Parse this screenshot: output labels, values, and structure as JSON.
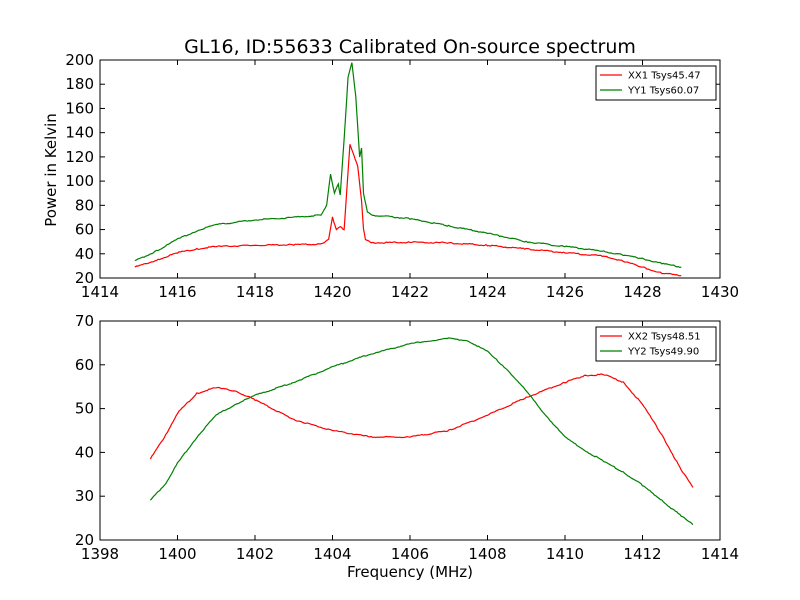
{
  "chart_data": [
    {
      "type": "line",
      "title": "GL16, ID:55633 Calibrated On-source spectrum",
      "xlabel": "",
      "ylabel": "Power in Kelvin",
      "xlim": [
        1414,
        1430
      ],
      "ylim": [
        20,
        200
      ],
      "xticks": [
        1414,
        1416,
        1418,
        1420,
        1422,
        1424,
        1426,
        1428,
        1430
      ],
      "yticks": [
        20,
        40,
        60,
        80,
        100,
        120,
        140,
        160,
        180,
        200
      ],
      "grid": false,
      "legend_position": "top-right",
      "series": [
        {
          "name": "XX1 Tsys45.47",
          "color": "#ff0000",
          "x": [
            1414.9,
            1415.5,
            1416.0,
            1416.5,
            1417.0,
            1418.0,
            1419.0,
            1419.7,
            1419.9,
            1420.0,
            1420.1,
            1420.2,
            1420.3,
            1420.45,
            1420.55,
            1420.65,
            1420.75,
            1420.8,
            1420.85,
            1421.0,
            1422.0,
            1423.0,
            1424.0,
            1425.0,
            1426.0,
            1427.0,
            1427.5,
            1428.0,
            1428.5,
            1429.0
          ],
          "y": [
            29,
            35,
            41,
            44,
            46,
            47,
            47.5,
            48,
            52,
            70,
            60,
            62,
            60,
            130,
            122,
            112,
            84,
            60,
            52,
            49,
            49.5,
            49,
            47,
            44,
            41,
            38,
            34,
            29,
            24,
            22
          ]
        },
        {
          "name": "YY1 Tsys60.07",
          "color": "#008000",
          "x": [
            1414.9,
            1415.5,
            1416.0,
            1416.5,
            1417.0,
            1418.0,
            1419.0,
            1419.7,
            1419.85,
            1419.95,
            1420.05,
            1420.15,
            1420.2,
            1420.3,
            1420.4,
            1420.5,
            1420.6,
            1420.7,
            1420.75,
            1420.8,
            1420.9,
            1421.0,
            1422.0,
            1423.0,
            1424.0,
            1425.0,
            1426.0,
            1427.0,
            1427.5,
            1428.0,
            1428.5,
            1429.0
          ],
          "y": [
            34,
            43,
            52,
            59,
            64,
            68,
            70,
            72,
            80,
            106,
            90,
            98,
            88,
            135,
            185,
            198,
            170,
            120,
            127,
            90,
            75,
            72,
            69,
            63,
            57,
            50,
            46,
            42,
            39,
            36,
            32,
            29
          ]
        }
      ]
    },
    {
      "type": "line",
      "title": "",
      "xlabel": "Frequency (MHz)",
      "ylabel": "",
      "xlim": [
        1398,
        1414
      ],
      "ylim": [
        20,
        70
      ],
      "xticks": [
        1398,
        1400,
        1402,
        1404,
        1406,
        1408,
        1410,
        1412,
        1414
      ],
      "yticks": [
        20,
        30,
        40,
        50,
        60,
        70
      ],
      "grid": false,
      "legend_position": "top-right",
      "series": [
        {
          "name": "XX2 Tsys48.51",
          "color": "#ff0000",
          "x": [
            1399.3,
            1399.7,
            1400.0,
            1400.5,
            1401.0,
            1401.5,
            1402.0,
            1403.0,
            1404.0,
            1405.0,
            1406.0,
            1407.0,
            1408.0,
            1409.0,
            1410.0,
            1410.5,
            1411.0,
            1411.5,
            1412.0,
            1412.5,
            1413.0,
            1413.3
          ],
          "y": [
            38.5,
            44,
            49,
            53.5,
            54.8,
            54,
            52,
            47.5,
            45,
            43.5,
            43.5,
            45,
            48.5,
            52.5,
            56,
            57.5,
            57.8,
            56,
            51,
            44,
            36,
            32
          ]
        },
        {
          "name": "YY2 Tsys49.90",
          "color": "#008000",
          "x": [
            1399.3,
            1399.7,
            1400.0,
            1400.5,
            1401.0,
            1401.5,
            1402.0,
            1403.0,
            1404.0,
            1405.0,
            1406.0,
            1406.5,
            1407.0,
            1407.5,
            1408.0,
            1408.5,
            1409.0,
            1409.5,
            1410.0,
            1410.5,
            1411.0,
            1411.5,
            1412.0,
            1412.5,
            1413.0,
            1413.3
          ],
          "y": [
            29,
            33,
            37.5,
            43.5,
            48.5,
            51,
            53,
            56,
            59.5,
            62.5,
            64.8,
            65.5,
            66,
            65.5,
            63,
            59,
            54,
            48.5,
            43.5,
            40.5,
            38,
            35.5,
            32.5,
            29,
            25.5,
            23.5
          ]
        }
      ]
    }
  ]
}
